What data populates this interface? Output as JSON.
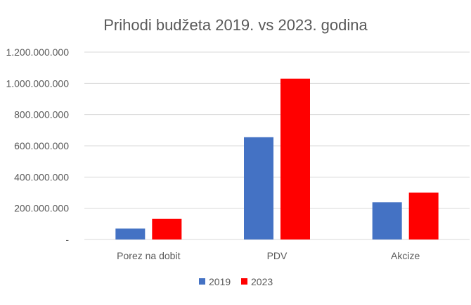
{
  "chart_data": {
    "type": "bar",
    "title": "Prihodi budžeta 2019. vs 2023. godina",
    "xlabel": "",
    "ylabel": "",
    "categories": [
      "Porez na dobit",
      "PDV",
      "Akcize"
    ],
    "series": [
      {
        "name": "2019",
        "color": "#4472c4",
        "values": [
          70000000,
          655000000,
          238000000
        ]
      },
      {
        "name": "2023",
        "color": "#ff0000",
        "values": [
          132000000,
          1030000000,
          300000000
        ]
      }
    ],
    "ylim": [
      0,
      1200000000
    ],
    "y_ticks": [
      0,
      200000000,
      400000000,
      600000000,
      800000000,
      1000000000,
      1200000000
    ],
    "y_tick_labels": [
      "-",
      "200.000.000",
      "400.000.000",
      "600.000.000",
      "800.000.000",
      "1.000.000.000",
      "1.200.000.000"
    ],
    "grid": "horizontal",
    "legend": "bottom"
  }
}
